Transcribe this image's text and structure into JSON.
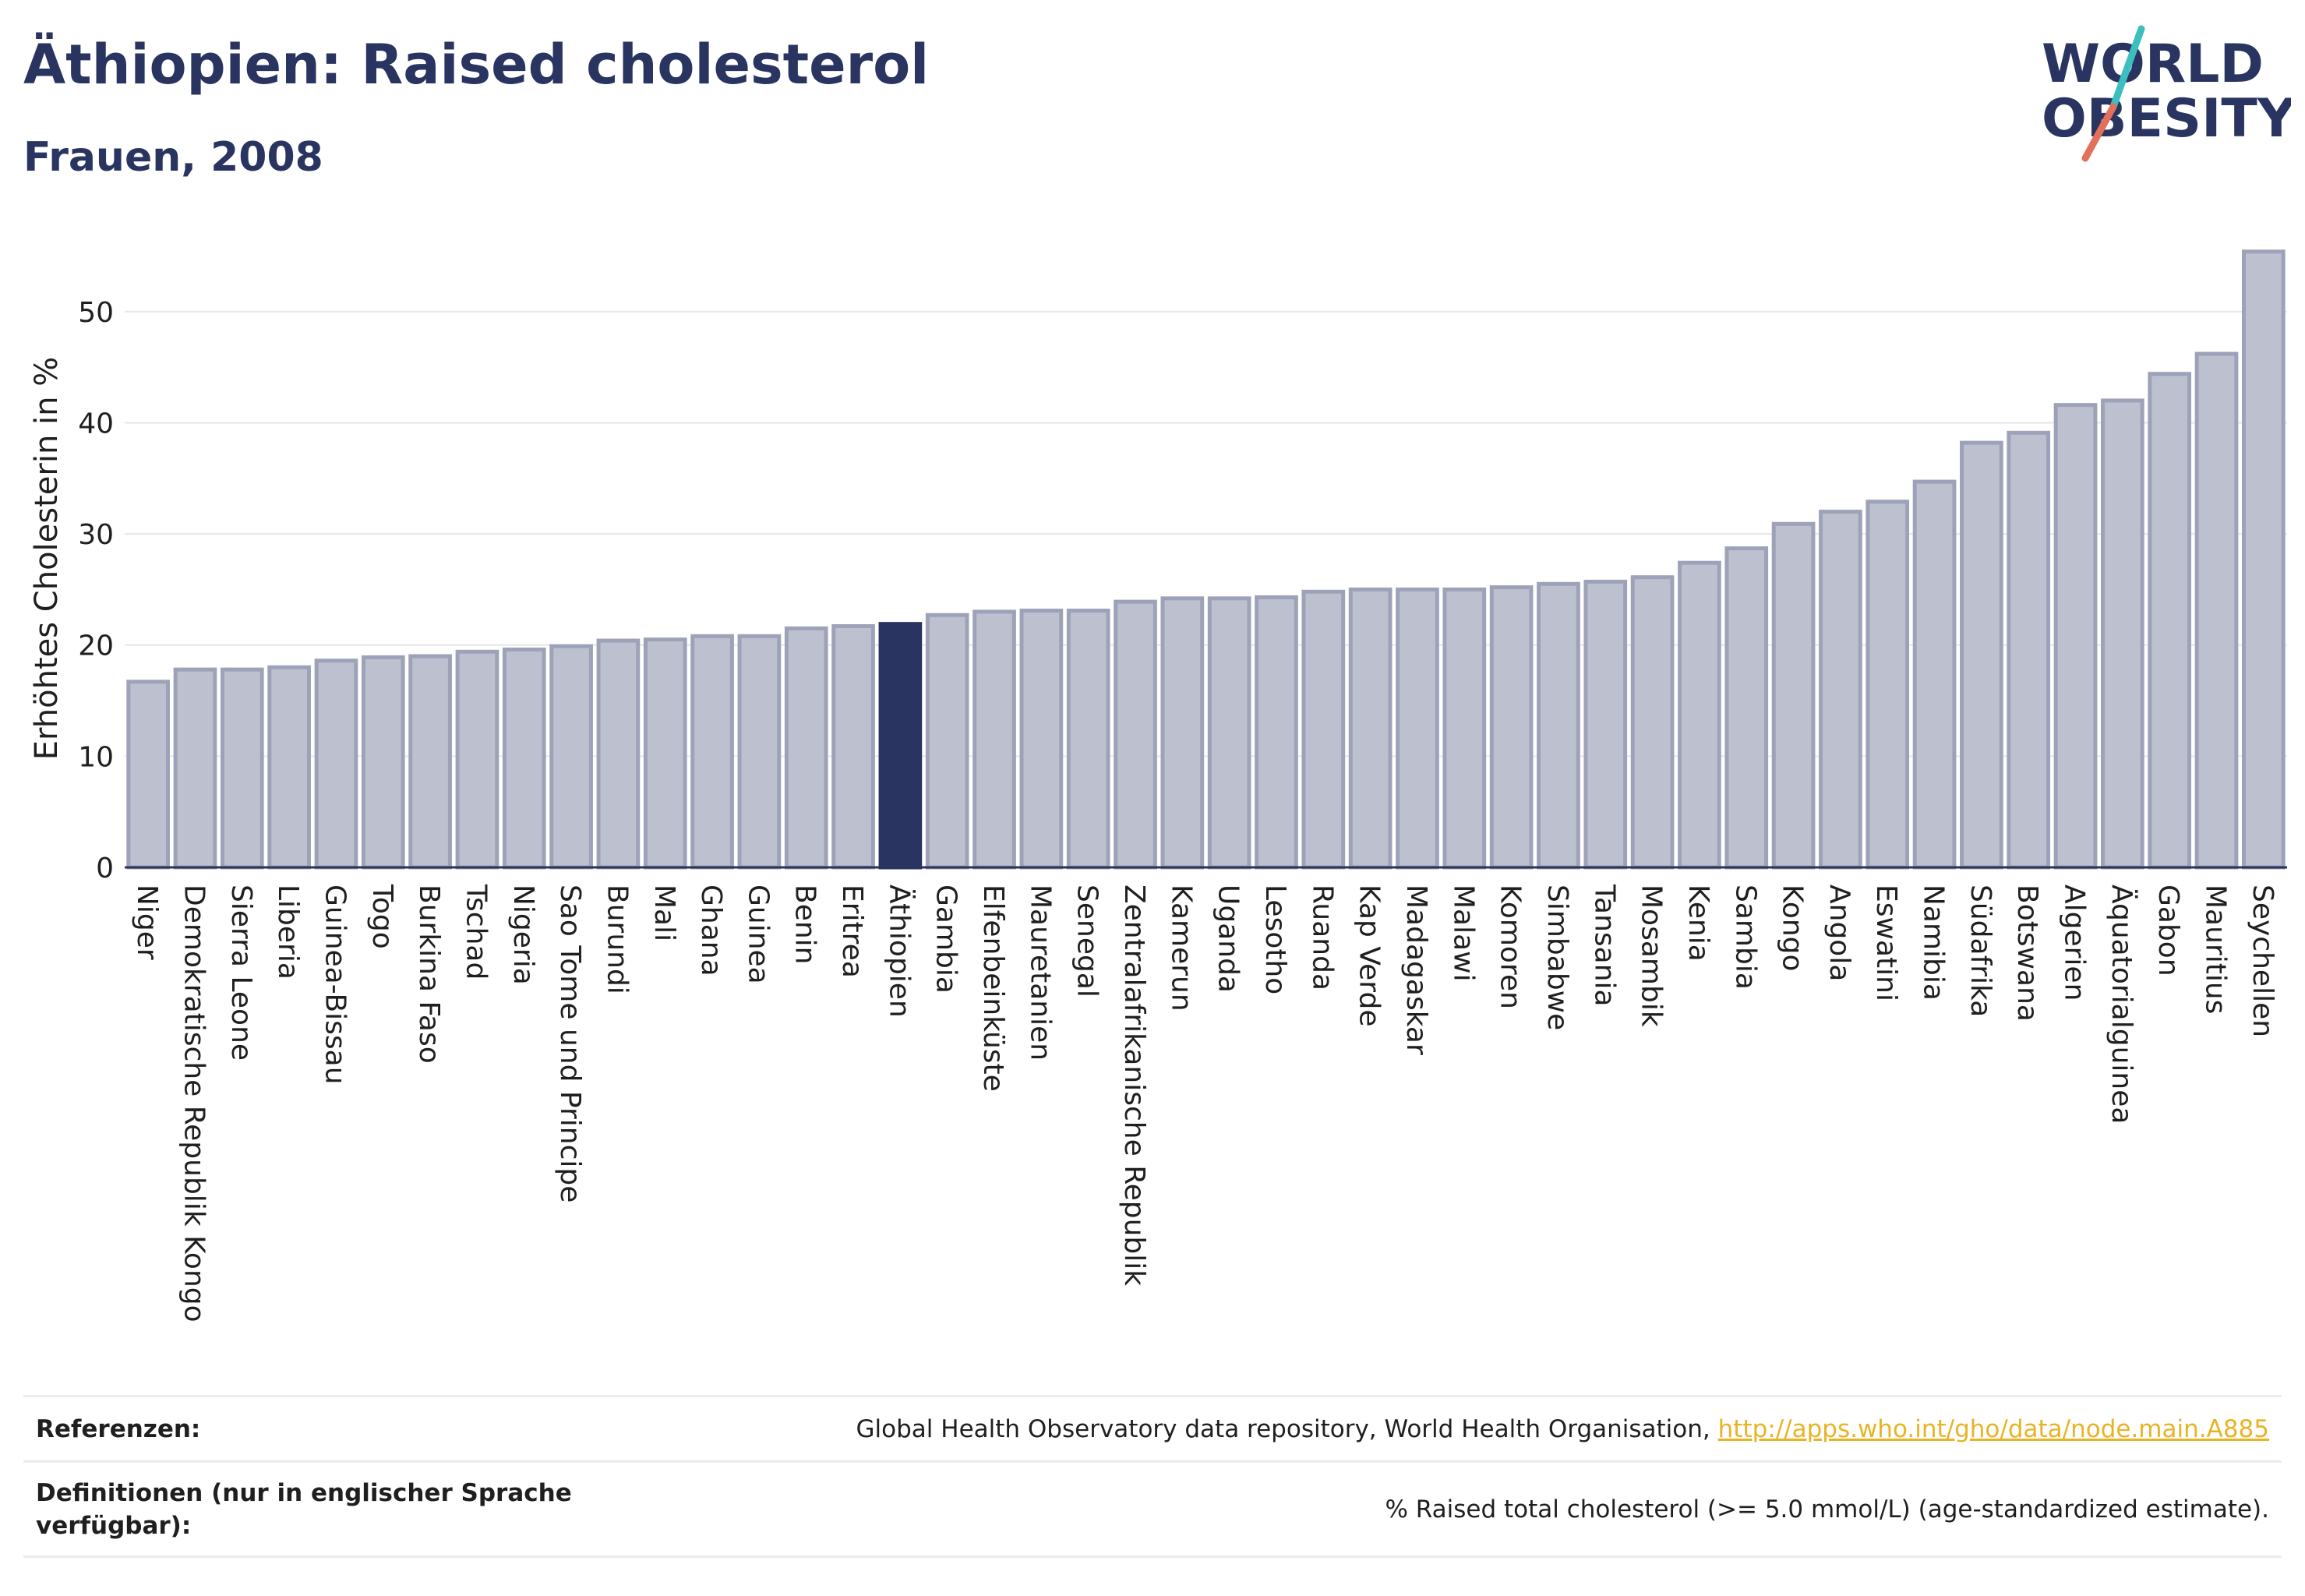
{
  "header": {
    "title": "Äthiopien: Raised cholesterol",
    "subtitle": "Frauen, 2008"
  },
  "logo": {
    "line1": "WORLD",
    "line2": "OBESITY",
    "colors": {
      "text": "#2a3461",
      "slash_top": "#3bbfbf",
      "slash_bottom": "#e2705a"
    }
  },
  "chart_data": {
    "type": "bar",
    "ylabel": "Erhöhtes Cholesterin in %",
    "xlabel": "",
    "ylim": [
      0,
      57
    ],
    "yticks": [
      0,
      10,
      20,
      30,
      40,
      50
    ],
    "grid": true,
    "highlight": "Äthiopien",
    "colors": {
      "bar": "#bdc0ce",
      "bar_edge": "#9da2b8",
      "highlight": "#2a3461"
    },
    "categories": [
      "Niger",
      "Demokratische Republik Kongo",
      "Sierra Leone",
      "Liberia",
      "Guinea-Bissau",
      "Togo",
      "Burkina Faso",
      "Tschad",
      "Nigeria",
      "Sao Tome und Principe",
      "Burundi",
      "Mali",
      "Ghana",
      "Guinea",
      "Benin",
      "Eritrea",
      "Äthiopien",
      "Gambia",
      "Elfenbeinküste",
      "Mauretanien",
      "Senegal",
      "Zentralafrikanische Republik",
      "Kamerun",
      "Uganda",
      "Lesotho",
      "Ruanda",
      "Kap Verde",
      "Madagaskar",
      "Malawi",
      "Komoren",
      "Simbabwe",
      "Tansania",
      "Mosambik",
      "Kenia",
      "Sambia",
      "Kongo",
      "Angola",
      "Eswatini",
      "Namibia",
      "Südafrika",
      "Botswana",
      "Algerien",
      "Äquatorialguinea",
      "Gabon",
      "Mauritius",
      "Seychellen"
    ],
    "values": [
      16.7,
      17.8,
      17.8,
      18.0,
      18.6,
      18.9,
      19.0,
      19.4,
      19.6,
      19.9,
      20.4,
      20.5,
      20.8,
      20.8,
      21.5,
      21.7,
      21.9,
      22.7,
      23.0,
      23.1,
      23.1,
      23.9,
      24.2,
      24.2,
      24.3,
      24.8,
      25.0,
      25.0,
      25.0,
      25.2,
      25.5,
      25.7,
      26.1,
      27.4,
      28.7,
      30.9,
      32.0,
      32.9,
      34.7,
      38.2,
      39.1,
      41.6,
      42.0,
      44.4,
      46.2,
      55.4
    ]
  },
  "footer": {
    "references_label": "Referenzen:",
    "references_text": "Global Health Observatory data repository, World Health Organisation,",
    "references_link": "http://apps.who.int/gho/data/node.main.A885",
    "definitions_label": "Definitionen (nur in englischer Sprache verfügbar):",
    "definitions_text": "% Raised total cholesterol (>= 5.0 mmol/L) (age-standardized estimate)."
  }
}
